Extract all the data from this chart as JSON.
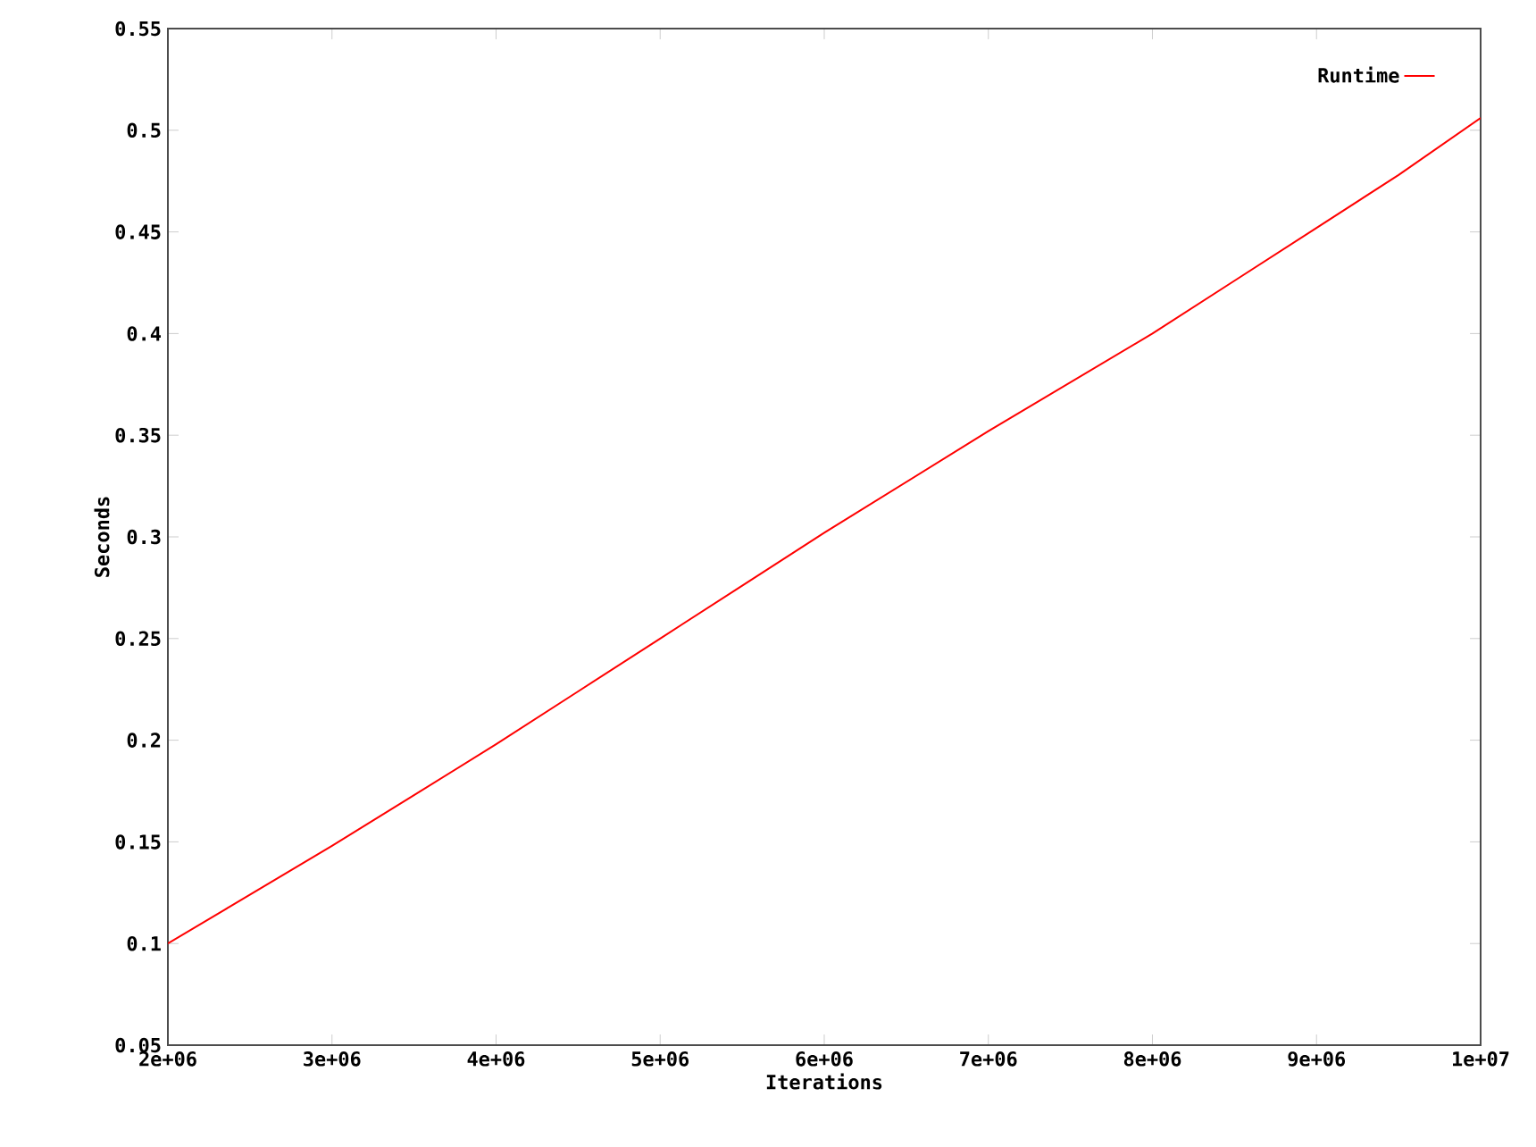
{
  "chart_data": {
    "type": "line",
    "xlabel": "Iterations",
    "ylabel": "Seconds",
    "x": [
      2000000,
      2500000,
      3000000,
      3500000,
      4000000,
      4500000,
      5000000,
      5500000,
      6000000,
      6500000,
      7000000,
      7500000,
      8000000,
      8500000,
      9000000,
      9500000,
      10000000
    ],
    "series": [
      {
        "name": "Runtime",
        "color": "#ff0000",
        "values": [
          0.1,
          0.124,
          0.148,
          0.173,
          0.198,
          0.224,
          0.25,
          0.276,
          0.302,
          0.327,
          0.352,
          0.376,
          0.4,
          0.426,
          0.452,
          0.478,
          0.506
        ]
      }
    ],
    "xlim": [
      2000000,
      10000000
    ],
    "xticks": [
      {
        "value": 2000000,
        "label": "2e+06"
      },
      {
        "value": 3000000,
        "label": "3e+06"
      },
      {
        "value": 4000000,
        "label": "4e+06"
      },
      {
        "value": 5000000,
        "label": "5e+06"
      },
      {
        "value": 6000000,
        "label": "6e+06"
      },
      {
        "value": 7000000,
        "label": "7e+06"
      },
      {
        "value": 8000000,
        "label": "8e+06"
      },
      {
        "value": 9000000,
        "label": "9e+06"
      },
      {
        "value": 10000000,
        "label": "1e+07"
      }
    ],
    "ylim": [
      0.05,
      0.55
    ],
    "yticks": [
      0.05,
      0.1,
      0.15,
      0.2,
      0.25,
      0.3,
      0.35,
      0.4,
      0.45,
      0.5,
      0.55
    ],
    "legend": "top right",
    "grid": false,
    "marker": "none",
    "line_style": "solid"
  }
}
